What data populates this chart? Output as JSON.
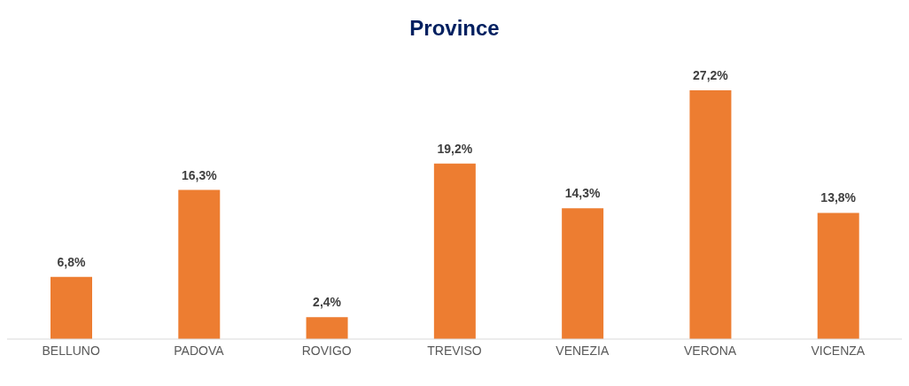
{
  "chart_data": {
    "type": "bar",
    "title": "Province",
    "categories": [
      "BELLUNO",
      "PADOVA",
      "ROVIGO",
      "TREVISO",
      "VENEZIA",
      "VERONA",
      "VICENZA"
    ],
    "values": [
      6.8,
      16.3,
      2.4,
      19.2,
      14.3,
      27.2,
      13.8
    ],
    "value_labels": [
      "6,8%",
      "16,3%",
      "2,4%",
      "19,2%",
      "14,3%",
      "27,2%",
      "13,8%"
    ],
    "color": "#ed7d31",
    "grid": false,
    "legend": false
  }
}
